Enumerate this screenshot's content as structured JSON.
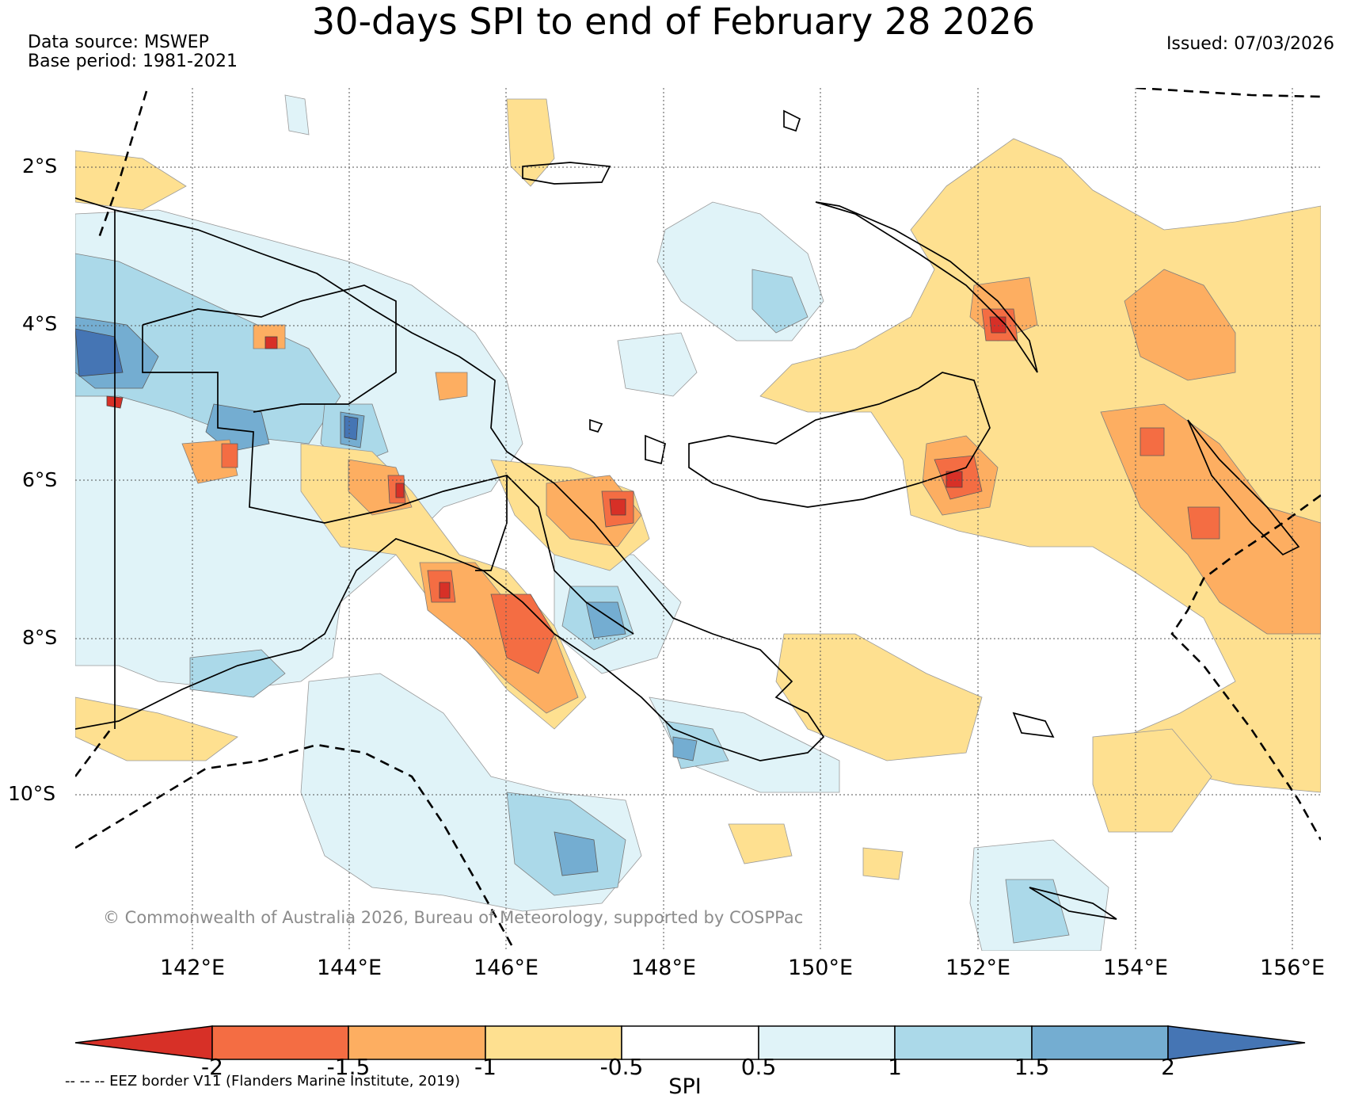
{
  "title": "30-days SPI to end of February 28 2026",
  "data_source": "Data source: MSWEP",
  "base_period": "Base period: 1981-2021",
  "issued": "Issued: 07/03/2026",
  "copyright": "© Commonwealth of Australia 2026, Bureau of Meteorology, supported by COSPPac",
  "latitude_labels": [
    "2°S",
    "4°S",
    "6°S",
    "8°S",
    "10°S"
  ],
  "longitude_labels": [
    "142°E",
    "144°E",
    "146°E",
    "148°E",
    "150°E",
    "152°E",
    "154°E",
    "156°E"
  ],
  "colorbar": {
    "label": "SPI",
    "ticks": [
      "-2",
      "-1.5",
      "-1",
      "-0.5",
      "0.5",
      "1",
      "1.5",
      "2"
    ],
    "colors": [
      "#d73027",
      "#f46d43",
      "#fdae61",
      "#fee090",
      "#ffffff",
      "#e0f3f8",
      "#abd9e9",
      "#74add1",
      "#4575b4"
    ]
  },
  "eez_note": "-- -- -- EEZ border V11 (Flanders Marine Institute, 2019)"
}
